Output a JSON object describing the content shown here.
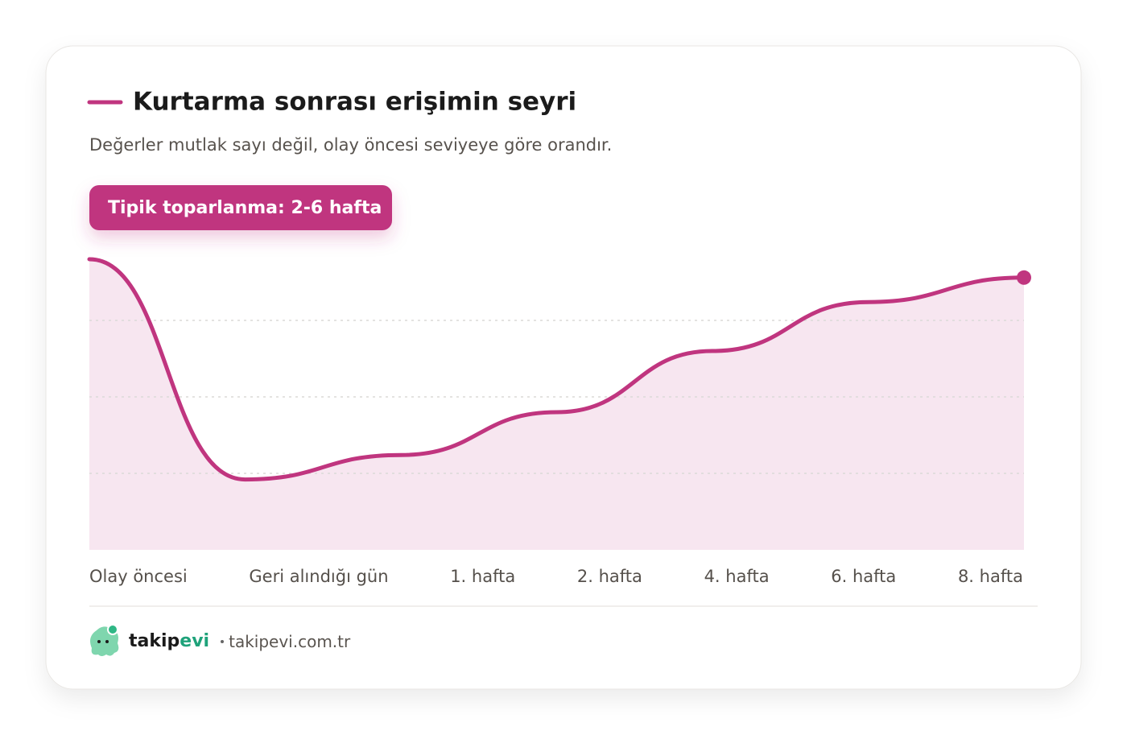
{
  "chart_data": {
    "type": "area",
    "title": "Kurtarma sonrası erişimin seyri",
    "subtitle": "Değerler mutlak sayı değil, olay öncesi seviyeye göre orandır.",
    "categories": [
      "Olay öncesi",
      "Geri alındığı gün",
      "1. hafta",
      "2. hafta",
      "4. hafta",
      "6. hafta",
      "8. hafta"
    ],
    "values": [
      95,
      23,
      31,
      45,
      65,
      81,
      89
    ],
    "color": "#c0357f",
    "fill": "#f7e6f0",
    "ylim": [
      0,
      100
    ],
    "yticks": [
      25,
      50,
      75
    ],
    "grid": true
  },
  "badge": "Tipik toparlanma: 2-6 hafta",
  "footer": {
    "brand_start": "takip",
    "brand_end": "evi",
    "url": "takipevi.com.tr"
  }
}
